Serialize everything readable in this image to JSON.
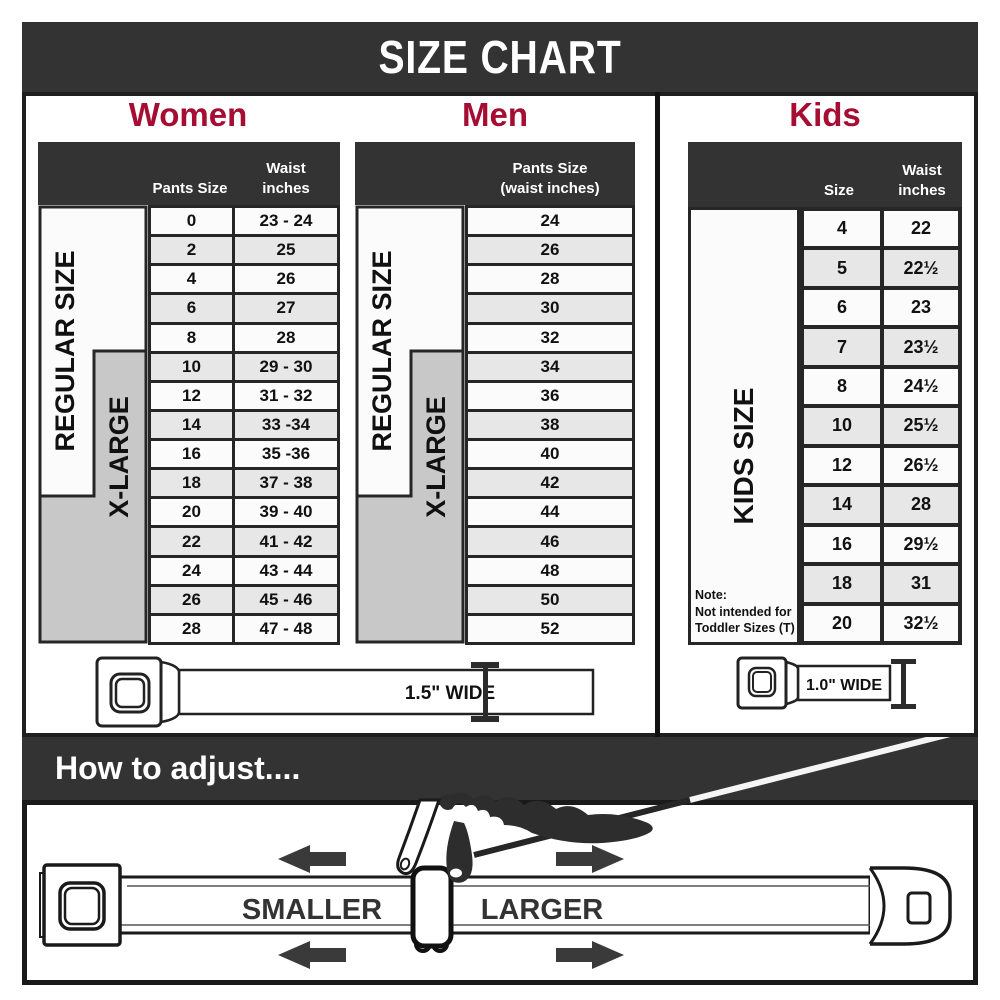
{
  "title": "SIZE CHART",
  "sections": {
    "women": {
      "heading": "Women",
      "header": {
        "pants": "Pants Size",
        "waist": "Waist\ninches"
      },
      "regular_label": "REGULAR SIZE",
      "xlarge_label": "X-LARGE",
      "rows": [
        [
          "0",
          "23 - 24"
        ],
        [
          "2",
          "25"
        ],
        [
          "4",
          "26"
        ],
        [
          "6",
          "27"
        ],
        [
          "8",
          "28"
        ],
        [
          "10",
          "29 - 30"
        ],
        [
          "12",
          "31 - 32"
        ],
        [
          "14",
          "33 -34"
        ],
        [
          "16",
          "35 -36"
        ],
        [
          "18",
          "37 - 38"
        ],
        [
          "20",
          "39 - 40"
        ],
        [
          "22",
          "41 - 42"
        ],
        [
          "24",
          "43 - 44"
        ],
        [
          "26",
          "45 - 46"
        ],
        [
          "28",
          "47 - 48"
        ]
      ],
      "belt_label": "1.5\" WIDE"
    },
    "men": {
      "heading": "Men",
      "header": {
        "pants": "Pants Size\n(waist inches)"
      },
      "regular_label": "REGULAR SIZE",
      "xlarge_label": "X-LARGE",
      "rows": [
        "24",
        "26",
        "28",
        "30",
        "32",
        "34",
        "36",
        "38",
        "40",
        "42",
        "44",
        "46",
        "48",
        "50",
        "52"
      ]
    },
    "kids": {
      "heading": "Kids",
      "header": {
        "size": "Size",
        "waist": "Waist\ninches"
      },
      "side_label": "KIDS SIZE",
      "note": "Note:\nNot intended for\nToddler Sizes (T)",
      "rows": [
        [
          "4",
          "22"
        ],
        [
          "5",
          "22½"
        ],
        [
          "6",
          "23"
        ],
        [
          "7",
          "23½"
        ],
        [
          "8",
          "24½"
        ],
        [
          "10",
          "25½"
        ],
        [
          "12",
          "26½"
        ],
        [
          "14",
          "28"
        ],
        [
          "16",
          "29½"
        ],
        [
          "18",
          "31"
        ],
        [
          "20",
          "32½"
        ]
      ],
      "belt_label": "1.0\" WIDE"
    }
  },
  "adjust": {
    "heading": "How to adjust....",
    "smaller_label": "SMALLER",
    "larger_label": "LARGER"
  },
  "colors": {
    "accent_red": "#A60D33",
    "bar_dark": "#333333",
    "border_dark": "#262626",
    "row_light": "#fbfbfb",
    "row_alt": "#e7e7e7",
    "xlarge_gray": "#c8c8c8"
  }
}
